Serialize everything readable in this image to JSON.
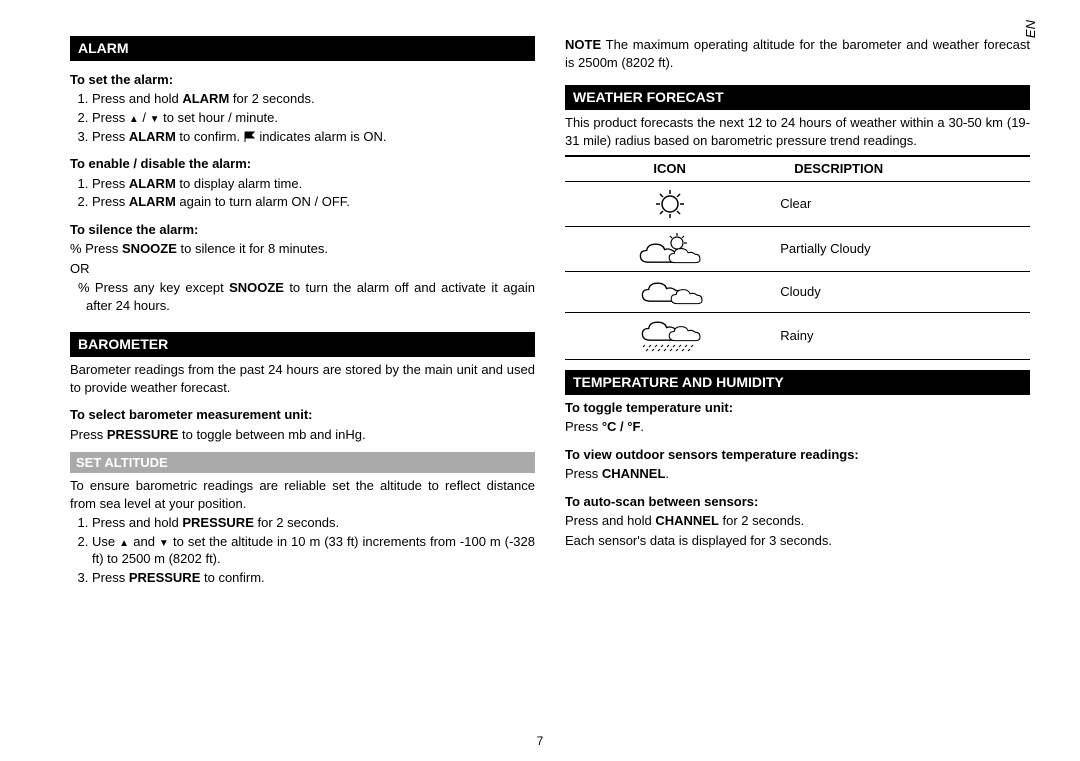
{
  "lang_tab": "EN",
  "page_number": "7",
  "left": {
    "alarm": {
      "header": "ALARM",
      "set_title": "To set the alarm:",
      "set_steps": [
        "Press and hold <b>ALARM</b> for 2 seconds.",
        "Press <span class='up'></span> / <span class='down'></span> to set hour / minute.",
        "Press <b>ALARM</b> to confirm. <svg class='icon-flag' viewBox='0 0 12 12'><path d='M1 1 L1 11 M1 1 L10 1 L7 4 L10 7 L1 7' stroke='black' fill='black' stroke-width='1'/></svg> indicates alarm is ON."
      ],
      "enable_title": "To enable / disable the alarm:",
      "enable_steps": [
        "Press <b>ALARM</b> to display alarm time.",
        "Press <b>ALARM</b> again to turn alarm ON / OFF."
      ],
      "silence_title": "To silence the alarm:",
      "silence_line1": "% Press <b>SNOOZE</b> to silence it for 8 minutes.",
      "silence_or": "OR",
      "silence_line2": "% Press any key except <b>SNOOZE</b> to turn the alarm off and activate it again after 24 hours."
    },
    "barometer": {
      "header": "BAROMETER",
      "intro": "Barometer readings from the past 24 hours are stored by the main unit and used to provide weather forecast.",
      "unit_title": "To select barometer measurement unit:",
      "unit_text": "Press <b>PRESSURE</b> to toggle between mb and inHg.",
      "set_alt_header": "SET ALTITUDE",
      "set_alt_intro": "To ensure barometric readings are reliable set the altitude to reflect distance from sea level at your position.",
      "set_alt_steps": [
        "Press and hold <b>PRESSURE</b> for 2 seconds.",
        "Use <span class='up'></span> and <span class='down'></span> to set the altitude in 10 m (33 ft) increments from -100 m (-328 ft) to 2500 m (8202 ft).",
        "Press <b>PRESSURE</b> to confirm."
      ]
    }
  },
  "right": {
    "note": "<b>NOTE</b> The maximum operating altitude for the barometer and weather forecast is 2500m (8202 ft).",
    "weather": {
      "header": "WEATHER FORECAST",
      "intro": "This product forecasts the next 12 to 24 hours of weather within a 30-50 km (19-31 mile) radius based on barometric pressure trend readings.",
      "table": {
        "col_icon": "ICON",
        "col_desc": "DESCRIPTION",
        "rows": [
          {
            "desc": "Clear",
            "icon": "sun"
          },
          {
            "desc": "Partially Cloudy",
            "icon": "partly"
          },
          {
            "desc": "Cloudy",
            "icon": "cloudy"
          },
          {
            "desc": "Rainy",
            "icon": "rainy"
          }
        ]
      }
    },
    "temp": {
      "header": "TEMPERATURE AND HUMIDITY",
      "toggle_title": "To toggle temperature unit:",
      "toggle_text": "Press <b>°C / °F</b>.",
      "view_title": "To view outdoor sensors temperature readings:",
      "view_text": "Press <b>CHANNEL</b>.",
      "auto_title": "To auto-scan between sensors:",
      "auto_text1": "Press and hold <b>CHANNEL</b> for 2 seconds.",
      "auto_text2": "Each sensor's data is displayed for 3 seconds."
    }
  }
}
